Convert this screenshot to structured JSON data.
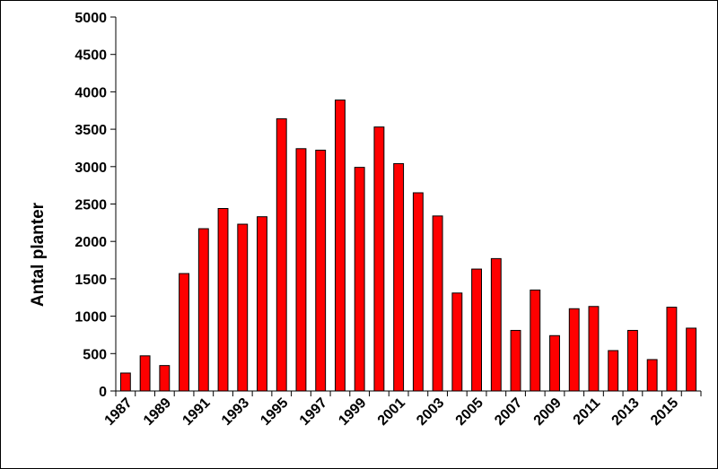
{
  "chart_data": {
    "type": "bar",
    "ylabel": "Antal planter",
    "ylim": [
      0,
      5000
    ],
    "yticks": [
      0,
      500,
      1000,
      1500,
      2000,
      2500,
      3000,
      3500,
      4000,
      4500,
      5000
    ],
    "ytick_labels": [
      "0",
      "500",
      "1000",
      "1500",
      "2000",
      "2500",
      "3000",
      "3500",
      "4000",
      "4500",
      "5000"
    ],
    "categories": [
      "1987",
      "1988",
      "1989",
      "1990",
      "1991",
      "1992",
      "1993",
      "1994",
      "1995",
      "1996",
      "1997",
      "1998",
      "1999",
      "2000",
      "2001",
      "2002",
      "2003",
      "2004",
      "2005",
      "2006",
      "2007",
      "2008",
      "2009",
      "2010",
      "2011",
      "2012",
      "2013",
      "2014",
      "2015",
      "2016"
    ],
    "x_tick_labels": [
      "1987",
      "",
      "1989",
      "",
      "1991",
      "",
      "1993",
      "",
      "1995",
      "",
      "1997",
      "",
      "1999",
      "",
      "2001",
      "",
      "2003",
      "",
      "2005",
      "",
      "2007",
      "",
      "2009",
      "",
      "2011",
      "",
      "2013",
      "",
      "2015",
      ""
    ],
    "values": [
      240,
      470,
      340,
      1570,
      2170,
      2440,
      2230,
      2330,
      3640,
      3240,
      3220,
      3890,
      2990,
      3530,
      3040,
      2650,
      2340,
      1310,
      1630,
      1770,
      810,
      1350,
      740,
      1100,
      1130,
      540,
      810,
      420,
      1120,
      840
    ],
    "bar_color": "#ff0000",
    "bar_edge_color": "#000000",
    "grid": false,
    "legend": "none"
  }
}
